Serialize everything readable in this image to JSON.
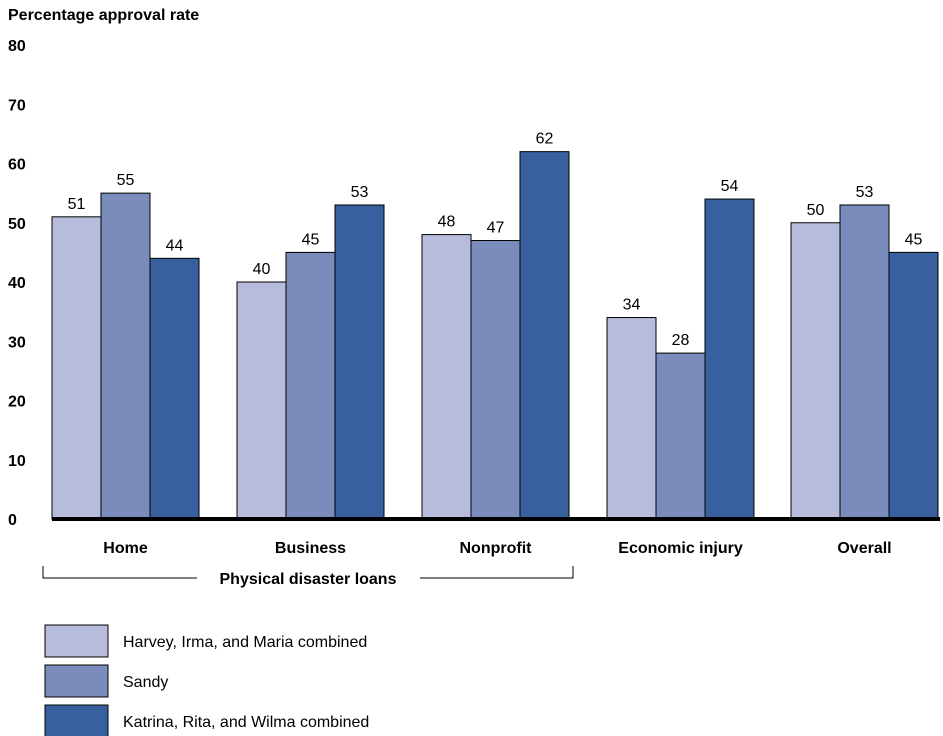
{
  "chart_data": {
    "type": "bar",
    "ylabel": "Percentage approval rate",
    "xlabel": "",
    "ylim": [
      0,
      80
    ],
    "yticks": [
      0,
      10,
      20,
      30,
      40,
      50,
      60,
      70,
      80
    ],
    "categories": [
      "Home",
      "Business",
      "Nonprofit",
      "Economic injury",
      "Overall"
    ],
    "series": [
      {
        "name": "Harvey, Irma, and Maria combined",
        "color": "#b8bcdc",
        "values": [
          51,
          40,
          48,
          34,
          50
        ]
      },
      {
        "name": "Sandy",
        "color": "#7a8cbc",
        "values": [
          55,
          45,
          47,
          28,
          53
        ]
      },
      {
        "name": "Katrina, Rita, and Wilma combined",
        "color": "#38609e",
        "values": [
          44,
          53,
          62,
          54,
          45
        ]
      }
    ],
    "group_annotation": {
      "label": "Physical disaster loans",
      "spans": [
        "Home",
        "Business",
        "Nonprofit"
      ]
    },
    "grid": false,
    "legend_position": "bottom-left"
  }
}
